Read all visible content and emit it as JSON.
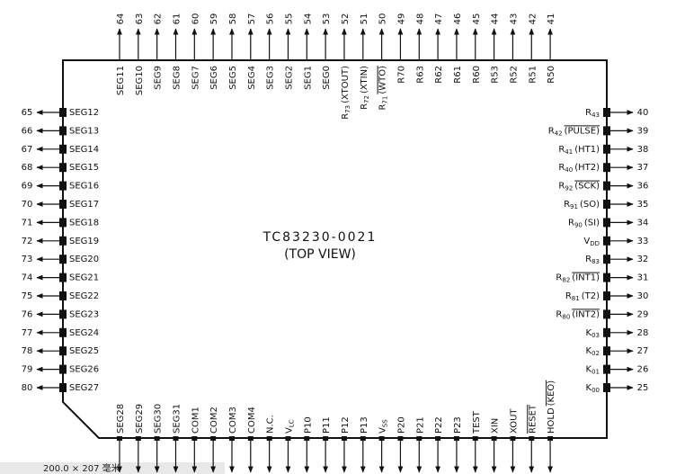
{
  "center": {
    "part": "TC83230-0021",
    "view": "(TOP VIEW)"
  },
  "top_pins": [
    {
      "num": "64",
      "label": {
        "name": "SEG11"
      }
    },
    {
      "num": "63",
      "label": {
        "name": "SEG10"
      }
    },
    {
      "num": "62",
      "label": {
        "name": "SEG9"
      }
    },
    {
      "num": "61",
      "label": {
        "name": "SEG8"
      }
    },
    {
      "num": "60",
      "label": {
        "name": "SEG7"
      }
    },
    {
      "num": "59",
      "label": {
        "name": "SEG6"
      }
    },
    {
      "num": "58",
      "label": {
        "name": "SEG5"
      }
    },
    {
      "num": "57",
      "label": {
        "name": "SEG4"
      }
    },
    {
      "num": "56",
      "label": {
        "name": "SEG3"
      }
    },
    {
      "num": "55",
      "label": {
        "name": "SEG2"
      }
    },
    {
      "num": "54",
      "label": {
        "name": "SEG1"
      }
    },
    {
      "num": "53",
      "label": {
        "name": "SEG0"
      }
    },
    {
      "num": "52",
      "label": {
        "name": "R",
        "sub": "73",
        "note": "(XTOUT)"
      }
    },
    {
      "num": "51",
      "label": {
        "name": "R",
        "sub": "72",
        "note": "(XTIN)"
      }
    },
    {
      "num": "50",
      "label": {
        "name": "R",
        "sub": "71",
        "note": "(WTO)",
        "bar": true
      }
    },
    {
      "num": "49",
      "label": {
        "name": "R70"
      }
    },
    {
      "num": "48",
      "label": {
        "name": "R63"
      }
    },
    {
      "num": "47",
      "label": {
        "name": "R62"
      }
    },
    {
      "num": "46",
      "label": {
        "name": "R61"
      }
    },
    {
      "num": "45",
      "label": {
        "name": "R60"
      }
    },
    {
      "num": "44",
      "label": {
        "name": "R53"
      }
    },
    {
      "num": "43",
      "label": {
        "name": "R52"
      }
    },
    {
      "num": "42",
      "label": {
        "name": "R51"
      }
    },
    {
      "num": "41",
      "label": {
        "name": "R50"
      }
    }
  ],
  "left_pins": [
    {
      "num": "65",
      "label": {
        "name": "SEG12"
      }
    },
    {
      "num": "66",
      "label": {
        "name": "SEG13"
      }
    },
    {
      "num": "67",
      "label": {
        "name": "SEG14"
      }
    },
    {
      "num": "68",
      "label": {
        "name": "SEG15"
      }
    },
    {
      "num": "69",
      "label": {
        "name": "SEG16"
      }
    },
    {
      "num": "70",
      "label": {
        "name": "SEG17"
      }
    },
    {
      "num": "71",
      "label": {
        "name": "SEG18"
      }
    },
    {
      "num": "72",
      "label": {
        "name": "SEG19"
      }
    },
    {
      "num": "73",
      "label": {
        "name": "SEG20"
      }
    },
    {
      "num": "74",
      "label": {
        "name": "SEG21"
      }
    },
    {
      "num": "75",
      "label": {
        "name": "SEG22"
      }
    },
    {
      "num": "76",
      "label": {
        "name": "SEG23"
      }
    },
    {
      "num": "77",
      "label": {
        "name": "SEG24"
      }
    },
    {
      "num": "78",
      "label": {
        "name": "SEG25"
      }
    },
    {
      "num": "79",
      "label": {
        "name": "SEG26"
      }
    },
    {
      "num": "80",
      "label": {
        "name": "SEG27"
      }
    }
  ],
  "right_pins": [
    {
      "num": "40",
      "label": {
        "name": "R",
        "sub": "43"
      }
    },
    {
      "num": "39",
      "label": {
        "name": "R",
        "sub": "42",
        "note": "(PULSE)",
        "bar": true
      }
    },
    {
      "num": "38",
      "label": {
        "name": "R",
        "sub": "41",
        "note": "(HT1)"
      }
    },
    {
      "num": "37",
      "label": {
        "name": "R",
        "sub": "40",
        "note": "(HT2)"
      }
    },
    {
      "num": "36",
      "label": {
        "name": "R",
        "sub": "92",
        "note": "(SCK)",
        "bar": true
      }
    },
    {
      "num": "35",
      "label": {
        "name": "R",
        "sub": "91",
        "note": "(SO)"
      }
    },
    {
      "num": "34",
      "label": {
        "name": "R",
        "sub": "90",
        "note": "(SI)"
      }
    },
    {
      "num": "33",
      "label": {
        "name": "V",
        "sub": "DD"
      }
    },
    {
      "num": "32",
      "label": {
        "name": "R",
        "sub": "83"
      }
    },
    {
      "num": "31",
      "label": {
        "name": "R",
        "sub": "82",
        "note": "(INT1)",
        "bar": true
      }
    },
    {
      "num": "30",
      "label": {
        "name": "R",
        "sub": "81",
        "note": "(T2)"
      }
    },
    {
      "num": "29",
      "label": {
        "name": "R",
        "sub": "80",
        "note": "(INT2)",
        "bar": true
      }
    },
    {
      "num": "28",
      "label": {
        "name": "K",
        "sub": "03"
      }
    },
    {
      "num": "27",
      "label": {
        "name": "K",
        "sub": "02"
      }
    },
    {
      "num": "26",
      "label": {
        "name": "K",
        "sub": "01"
      }
    },
    {
      "num": "25",
      "label": {
        "name": "K",
        "sub": "00"
      }
    }
  ],
  "bottom_pins": [
    {
      "label": {
        "name": "SEG28"
      }
    },
    {
      "label": {
        "name": "SEG29"
      }
    },
    {
      "label": {
        "name": "SEG30"
      }
    },
    {
      "label": {
        "name": "SEG31"
      }
    },
    {
      "label": {
        "name": "COM1"
      }
    },
    {
      "label": {
        "name": "COM2"
      }
    },
    {
      "label": {
        "name": "COM3"
      }
    },
    {
      "label": {
        "name": "COM4"
      }
    },
    {
      "label": {
        "name": "N.C."
      }
    },
    {
      "label": {
        "name": "V",
        "sub": "LC"
      }
    },
    {
      "label": {
        "name": "P10"
      }
    },
    {
      "label": {
        "name": "P11"
      }
    },
    {
      "label": {
        "name": "P12"
      }
    },
    {
      "label": {
        "name": "P13"
      }
    },
    {
      "label": {
        "name": "V",
        "sub": "SS"
      }
    },
    {
      "label": {
        "name": "P20"
      }
    },
    {
      "label": {
        "name": "P21"
      }
    },
    {
      "label": {
        "name": "P22"
      }
    },
    {
      "label": {
        "name": "P23"
      }
    },
    {
      "label": {
        "name": "TEST"
      }
    },
    {
      "label": {
        "name": "XIN"
      }
    },
    {
      "label": {
        "name": "XOUT"
      }
    },
    {
      "label": {
        "name": "RESET",
        "bar": true
      }
    },
    {
      "label": {
        "name": "HOLD",
        "note": "(KEO)",
        "bar": true
      }
    }
  ],
  "status_bar": {
    "text": "200.0 × 207 毫米"
  }
}
